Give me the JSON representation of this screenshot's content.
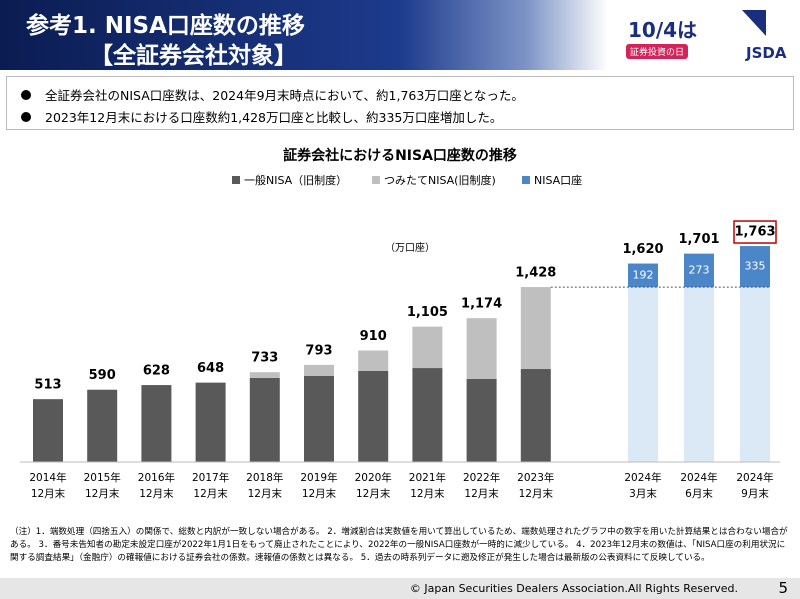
{
  "header": {
    "title": "参考1. NISA口座数の推移",
    "subtitle": "【全証券会社対象】",
    "logo_main": "10/4は",
    "logo_sub": "証券投資の日",
    "logo_org": "JSDA"
  },
  "bullets": [
    "全証券会社のNISA口座数は、2024年9月末時点において、約1,763万口座となった。",
    "2023年12月末における口座数約1,428万口座と比較し、約335万口座増加した。"
  ],
  "chart_data": {
    "type": "bar",
    "stacked": true,
    "title": "証券会社におけるNISA口座数の推移",
    "unit_label": "（万口座）",
    "categories": [
      [
        "2014年",
        "12月末"
      ],
      [
        "2015年",
        "12月末"
      ],
      [
        "2016年",
        "12月末"
      ],
      [
        "2017年",
        "12月末"
      ],
      [
        "2018年",
        "12月末"
      ],
      [
        "2019年",
        "12月末"
      ],
      [
        "2020年",
        "12月末"
      ],
      [
        "2021年",
        "12月末"
      ],
      [
        "2022年",
        "12月末"
      ],
      [
        "2023年",
        "12月末"
      ],
      [
        "2024年",
        "3月末"
      ],
      [
        "2024年",
        "6月末"
      ],
      [
        "2024年",
        "9月末"
      ]
    ],
    "series": [
      {
        "name": "一般NISA（旧制度）",
        "color": "#595959",
        "values": [
          513,
          590,
          628,
          648,
          686,
          702,
          743,
          767,
          678,
          759,
          null,
          null,
          null
        ]
      },
      {
        "name": "つみたてNISA(旧制度)",
        "color": "#bfbfbf",
        "values": [
          null,
          null,
          null,
          null,
          47,
          91,
          167,
          338,
          496,
          669,
          null,
          null,
          null
        ]
      },
      {
        "color": "#dbe8f6",
        "values": [
          null,
          null,
          null,
          null,
          null,
          null,
          null,
          null,
          null,
          null,
          1428,
          1428,
          1428
        ]
      },
      {
        "name": "NISA口座",
        "color": "#4a86c8",
        "labels": true,
        "values": [
          null,
          null,
          null,
          null,
          null,
          null,
          null,
          null,
          null,
          null,
          192,
          273,
          335
        ]
      }
    ],
    "totals": {
      "values": [
        513,
        590,
        628,
        648,
        733,
        793,
        910,
        1105,
        1174,
        1428,
        1620,
        1701,
        1763
      ],
      "value_labels": [
        "513",
        "590",
        "628",
        "648",
        "733",
        "793",
        "910",
        "1,105",
        "1,174",
        "1,428",
        "1,620",
        "1,701",
        "1,763"
      ]
    },
    "highlight_index": 12,
    "highlight_color": "#c00000",
    "ylim": [
      0,
      2000
    ]
  },
  "notes": "（注）1．端数処理（四捨五入）の関係で、総数と内訳が一致しない場合がある。 2．増減割合は実数値を用いて算出しているため、端数処理されたグラフ中の数字を用いた計算結果とは合わない場合がある。 3．番号未告知者の勘定未設定口座が2022年1月1日をもって廃止されたことにより、2022年の一般NISA口座数が一時的に減少している。 4．2023年12月末の数値は、「NISA口座の利用状況に関する調査結果」（金融庁）の確報値における証券会社の係数。速報値の係数とは異なる。 5．過去の時系列データに遡及修正が発生した場合は最新版の公表資料にて反映している。",
  "footer": {
    "copyright": "© Japan Securities Dealers Association.All Rights Reserved.",
    "page": "5"
  }
}
